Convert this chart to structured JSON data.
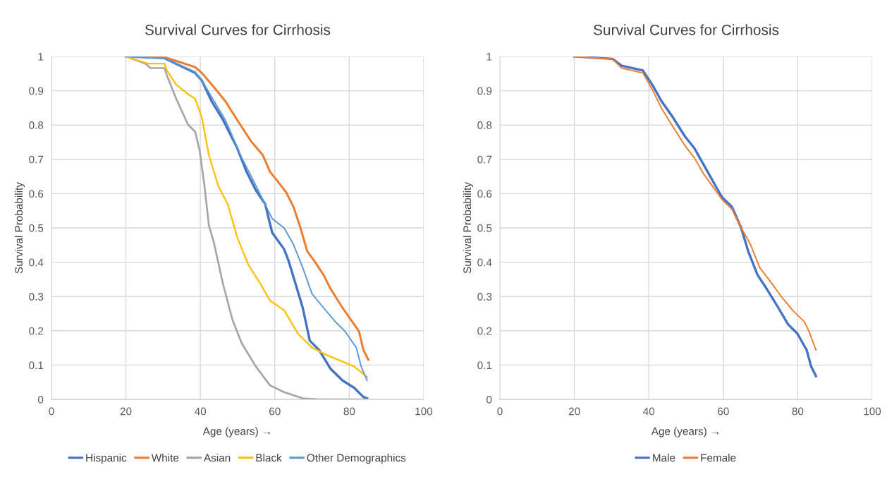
{
  "chart_data": [
    {
      "type": "line",
      "title": "Survival Curves for Cirrhosis",
      "xlabel": "Age (years) →",
      "ylabel": "Survival Probability",
      "xlim": [
        0,
        100
      ],
      "xticks": [
        0,
        20,
        40,
        60,
        80,
        100
      ],
      "ylim": [
        0,
        1
      ],
      "yticks": [
        0,
        0.1,
        0.2,
        0.3,
        0.4,
        0.5,
        0.6,
        0.7,
        0.8,
        0.9,
        1
      ],
      "grid": true,
      "legend": "bottom",
      "marker": "none",
      "line_style": "solid",
      "series": [
        {
          "name": "Hispanic",
          "color": "#4472c4",
          "x": [
            20,
            30.4,
            38.6,
            40.4,
            43,
            46.1,
            49.9,
            52.4,
            54.9,
            57.4,
            59.3,
            62.5,
            63.7,
            65.6,
            67.5,
            69.4,
            71.9,
            75,
            78.2,
            81.3,
            83.8,
            84.8
          ],
          "values": [
            1,
            0.995,
            0.952,
            0.93,
            0.87,
            0.815,
            0.733,
            0.664,
            0.61,
            0.57,
            0.486,
            0.438,
            0.404,
            0.336,
            0.267,
            0.171,
            0.144,
            0.089,
            0.055,
            0.034,
            0.007,
            0.003
          ]
        },
        {
          "name": "White",
          "color": "#ed7d31",
          "x": [
            20,
            30.4,
            38.6,
            40.4,
            43.6,
            46.7,
            49.9,
            53.6,
            56.8,
            58.7,
            61.2,
            63.1,
            65,
            66.9,
            68.7,
            70.6,
            73.1,
            75,
            78.2,
            81.3,
            82.6,
            83.8,
            85.1
          ],
          "values": [
            1,
            0.998,
            0.969,
            0.952,
            0.911,
            0.87,
            0.815,
            0.753,
            0.712,
            0.664,
            0.63,
            0.603,
            0.562,
            0.5,
            0.432,
            0.404,
            0.363,
            0.322,
            0.267,
            0.219,
            0.199,
            0.144,
            0.116
          ]
        },
        {
          "name": "Asian",
          "color": "#a5a5a5",
          "x": [
            20,
            25.3,
            26.6,
            30.4,
            31,
            33.5,
            36.7,
            38.6,
            39.8,
            41.1,
            42.3,
            43.6,
            46.1,
            48.6,
            51.1,
            54.9,
            58.7,
            62.5,
            67.5,
            71.9,
            84.8
          ],
          "values": [
            1,
            0.979,
            0.966,
            0.966,
            0.945,
            0.877,
            0.801,
            0.781,
            0.726,
            0.623,
            0.507,
            0.459,
            0.336,
            0.233,
            0.164,
            0.096,
            0.041,
            0.021,
            0.003,
            0,
            0
          ]
        },
        {
          "name": "Black",
          "color": "#ffc000",
          "x": [
            20,
            26,
            30.4,
            31,
            33.5,
            36.7,
            38.6,
            40.4,
            42.3,
            44.8,
            47.4,
            49.9,
            53,
            56.2,
            58.7,
            62.5,
            66.2,
            70,
            73.8,
            78.2,
            81.3,
            84.8
          ],
          "values": [
            1,
            0.979,
            0.979,
            0.959,
            0.918,
            0.89,
            0.877,
            0.822,
            0.712,
            0.623,
            0.568,
            0.473,
            0.39,
            0.336,
            0.288,
            0.26,
            0.192,
            0.151,
            0.13,
            0.11,
            0.096,
            0.065
          ]
        },
        {
          "name": "Other Demographics",
          "color": "#5b9bd5",
          "x": [
            20,
            30.4,
            38.6,
            40.4,
            46.7,
            51.1,
            54.3,
            56.8,
            59.3,
            62.5,
            65,
            67.5,
            70,
            73.1,
            76.3,
            78.8,
            81.9,
            83.2,
            84.8
          ],
          "values": [
            1,
            0.995,
            0.955,
            0.93,
            0.815,
            0.705,
            0.637,
            0.582,
            0.527,
            0.5,
            0.452,
            0.384,
            0.308,
            0.267,
            0.226,
            0.199,
            0.151,
            0.096,
            0.055
          ]
        }
      ]
    },
    {
      "type": "line",
      "title": "Survival Curves for Cirrhosis",
      "xlabel": "Age (years) →",
      "ylabel": "Survival Probability",
      "xlim": [
        0,
        100
      ],
      "xticks": [
        0,
        20,
        40,
        60,
        80,
        100
      ],
      "ylim": [
        0,
        1
      ],
      "yticks": [
        0,
        0.1,
        0.2,
        0.3,
        0.4,
        0.5,
        0.6,
        0.7,
        0.8,
        0.9,
        1
      ],
      "grid": true,
      "legend": "bottom",
      "marker": "none",
      "line_style": "solid",
      "series": [
        {
          "name": "Male",
          "color": "#4472c4",
          "x": [
            20,
            30.2,
            32.7,
            38.4,
            40.9,
            43.4,
            46.5,
            49.7,
            52.2,
            54.7,
            57.9,
            59.7,
            62.3,
            64.8,
            66.7,
            69.2,
            71.7,
            74.8,
            77.4,
            79.9,
            82.4,
            83.6,
            84.9
          ],
          "values": [
            1,
            0.993,
            0.973,
            0.959,
            0.918,
            0.87,
            0.822,
            0.767,
            0.733,
            0.685,
            0.623,
            0.589,
            0.562,
            0.5,
            0.432,
            0.363,
            0.322,
            0.267,
            0.219,
            0.192,
            0.144,
            0.096,
            0.068
          ]
        },
        {
          "name": "Female",
          "color": "#ed7d31",
          "x": [
            20,
            30.2,
            32.7,
            38.4,
            40.9,
            43.4,
            46.5,
            49.7,
            52.2,
            54.7,
            57.9,
            59.7,
            62.3,
            64.8,
            67.3,
            69.8,
            72.3,
            75.5,
            78.6,
            81.8,
            83,
            84.9
          ],
          "values": [
            1,
            0.993,
            0.966,
            0.952,
            0.904,
            0.849,
            0.795,
            0.74,
            0.705,
            0.658,
            0.61,
            0.582,
            0.555,
            0.5,
            0.452,
            0.384,
            0.349,
            0.301,
            0.26,
            0.226,
            0.199,
            0.144
          ]
        }
      ]
    }
  ]
}
